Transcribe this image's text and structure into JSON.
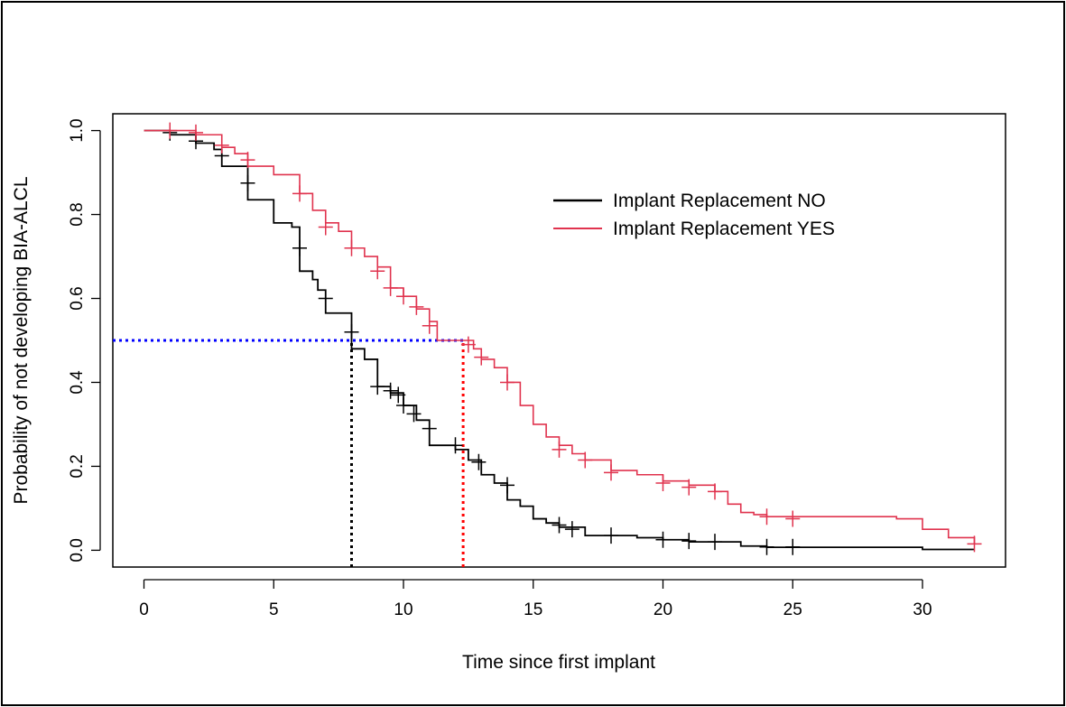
{
  "chart_data": {
    "type": "line",
    "subtype": "kaplan-meier-step",
    "title": "",
    "xlabel": "Time since first implant",
    "ylabel": "Probability of not developing BIA-ALCL",
    "xlim": [
      -1.2,
      33.2
    ],
    "ylim": [
      -0.04,
      1.04
    ],
    "xticks": [
      0,
      5,
      10,
      15,
      20,
      25,
      30
    ],
    "xtick_labels": [
      "0",
      "5",
      "10",
      "15",
      "20",
      "25",
      "30"
    ],
    "yticks": [
      0.0,
      0.2,
      0.4,
      0.6,
      0.8,
      1.0
    ],
    "ytick_labels": [
      "0.0",
      "0.2",
      "0.4",
      "0.6",
      "0.8",
      "1.0"
    ],
    "legend_position": "upper-right",
    "series": [
      {
        "name": "Implant Replacement NO",
        "color": "#000000",
        "steps": [
          [
            0,
            1.0
          ],
          [
            1,
            0.99
          ],
          [
            2,
            0.97
          ],
          [
            2.7,
            0.955
          ],
          [
            3,
            0.915
          ],
          [
            4,
            0.835
          ],
          [
            5,
            0.78
          ],
          [
            5.7,
            0.77
          ],
          [
            6,
            0.665
          ],
          [
            6.5,
            0.645
          ],
          [
            6.7,
            0.62
          ],
          [
            7,
            0.565
          ],
          [
            7.5,
            0.565
          ],
          [
            8,
            0.48
          ],
          [
            8.5,
            0.455
          ],
          [
            9,
            0.39
          ],
          [
            9.5,
            0.375
          ],
          [
            10,
            0.345
          ],
          [
            10.5,
            0.31
          ],
          [
            11,
            0.25
          ],
          [
            12,
            0.24
          ],
          [
            12.5,
            0.215
          ],
          [
            13,
            0.18
          ],
          [
            13.5,
            0.16
          ],
          [
            14,
            0.12
          ],
          [
            14.5,
            0.105
          ],
          [
            15,
            0.075
          ],
          [
            15.5,
            0.065
          ],
          [
            16,
            0.055
          ],
          [
            17,
            0.035
          ],
          [
            19,
            0.03
          ],
          [
            20,
            0.025
          ],
          [
            21,
            0.02
          ],
          [
            23,
            0.01
          ],
          [
            24,
            0.007
          ],
          [
            30,
            0.002
          ],
          [
            32,
            0.002
          ]
        ],
        "censored": [
          [
            1,
            0.995
          ],
          [
            2,
            0.975
          ],
          [
            3,
            0.94
          ],
          [
            4,
            0.875
          ],
          [
            6,
            0.72
          ],
          [
            7,
            0.6
          ],
          [
            8,
            0.52
          ],
          [
            9,
            0.39
          ],
          [
            9.5,
            0.38
          ],
          [
            9.8,
            0.37
          ],
          [
            10,
            0.345
          ],
          [
            10.4,
            0.325
          ],
          [
            11,
            0.29
          ],
          [
            12,
            0.25
          ],
          [
            12.9,
            0.21
          ],
          [
            14,
            0.155
          ],
          [
            16,
            0.06
          ],
          [
            16.5,
            0.05
          ],
          [
            18,
            0.035
          ],
          [
            20,
            0.025
          ],
          [
            21,
            0.022
          ],
          [
            22,
            0.02
          ],
          [
            24,
            0.008
          ],
          [
            25,
            0.008
          ]
        ],
        "median_time": 8
      },
      {
        "name": "Implant Replacement YES",
        "color": "#e0334e",
        "steps": [
          [
            0,
            1.0
          ],
          [
            1,
            1.0
          ],
          [
            2,
            0.99
          ],
          [
            3,
            0.96
          ],
          [
            3.5,
            0.945
          ],
          [
            4,
            0.915
          ],
          [
            5,
            0.895
          ],
          [
            6,
            0.85
          ],
          [
            6.5,
            0.81
          ],
          [
            7,
            0.78
          ],
          [
            7.5,
            0.76
          ],
          [
            8,
            0.72
          ],
          [
            8.5,
            0.7
          ],
          [
            9,
            0.675
          ],
          [
            9.5,
            0.625
          ],
          [
            10,
            0.605
          ],
          [
            10.5,
            0.575
          ],
          [
            11,
            0.545
          ],
          [
            11.3,
            0.5
          ],
          [
            12.5,
            0.5
          ],
          [
            12.7,
            0.48
          ],
          [
            13,
            0.455
          ],
          [
            13.5,
            0.435
          ],
          [
            14,
            0.4
          ],
          [
            14.5,
            0.345
          ],
          [
            15,
            0.3
          ],
          [
            15.5,
            0.27
          ],
          [
            16,
            0.25
          ],
          [
            16.5,
            0.23
          ],
          [
            17,
            0.215
          ],
          [
            18,
            0.19
          ],
          [
            19,
            0.18
          ],
          [
            20,
            0.165
          ],
          [
            21,
            0.155
          ],
          [
            22,
            0.14
          ],
          [
            22.5,
            0.11
          ],
          [
            23,
            0.09
          ],
          [
            23.5,
            0.085
          ],
          [
            24,
            0.08
          ],
          [
            29,
            0.075
          ],
          [
            30,
            0.05
          ],
          [
            31,
            0.03
          ],
          [
            32,
            0.015
          ]
        ],
        "censored": [
          [
            1,
            1.0
          ],
          [
            2,
            0.995
          ],
          [
            3,
            0.965
          ],
          [
            4,
            0.93
          ],
          [
            6,
            0.85
          ],
          [
            7,
            0.77
          ],
          [
            8,
            0.72
          ],
          [
            9,
            0.665
          ],
          [
            9.5,
            0.625
          ],
          [
            10,
            0.605
          ],
          [
            10.5,
            0.58
          ],
          [
            11,
            0.535
          ],
          [
            12.5,
            0.49
          ],
          [
            13,
            0.46
          ],
          [
            14,
            0.4
          ],
          [
            16,
            0.24
          ],
          [
            17,
            0.215
          ],
          [
            18,
            0.185
          ],
          [
            20,
            0.16
          ],
          [
            21,
            0.15
          ],
          [
            22,
            0.14
          ],
          [
            24,
            0.08
          ],
          [
            25,
            0.075
          ],
          [
            32,
            0.015
          ]
        ],
        "median_time": 12.3
      }
    ],
    "reference_lines": [
      {
        "kind": "horizontal",
        "y": 0.5,
        "x_from": -1.2,
        "x_to": 12.3,
        "color": "#0000ff",
        "style": "dotted"
      },
      {
        "kind": "vertical",
        "x": 8,
        "y_from": -0.04,
        "y_to": 0.5,
        "color": "#000000",
        "style": "dotted"
      },
      {
        "kind": "vertical",
        "x": 12.3,
        "y_from": -0.04,
        "y_to": 0.5,
        "color": "#ff0000",
        "style": "dotted"
      }
    ]
  }
}
